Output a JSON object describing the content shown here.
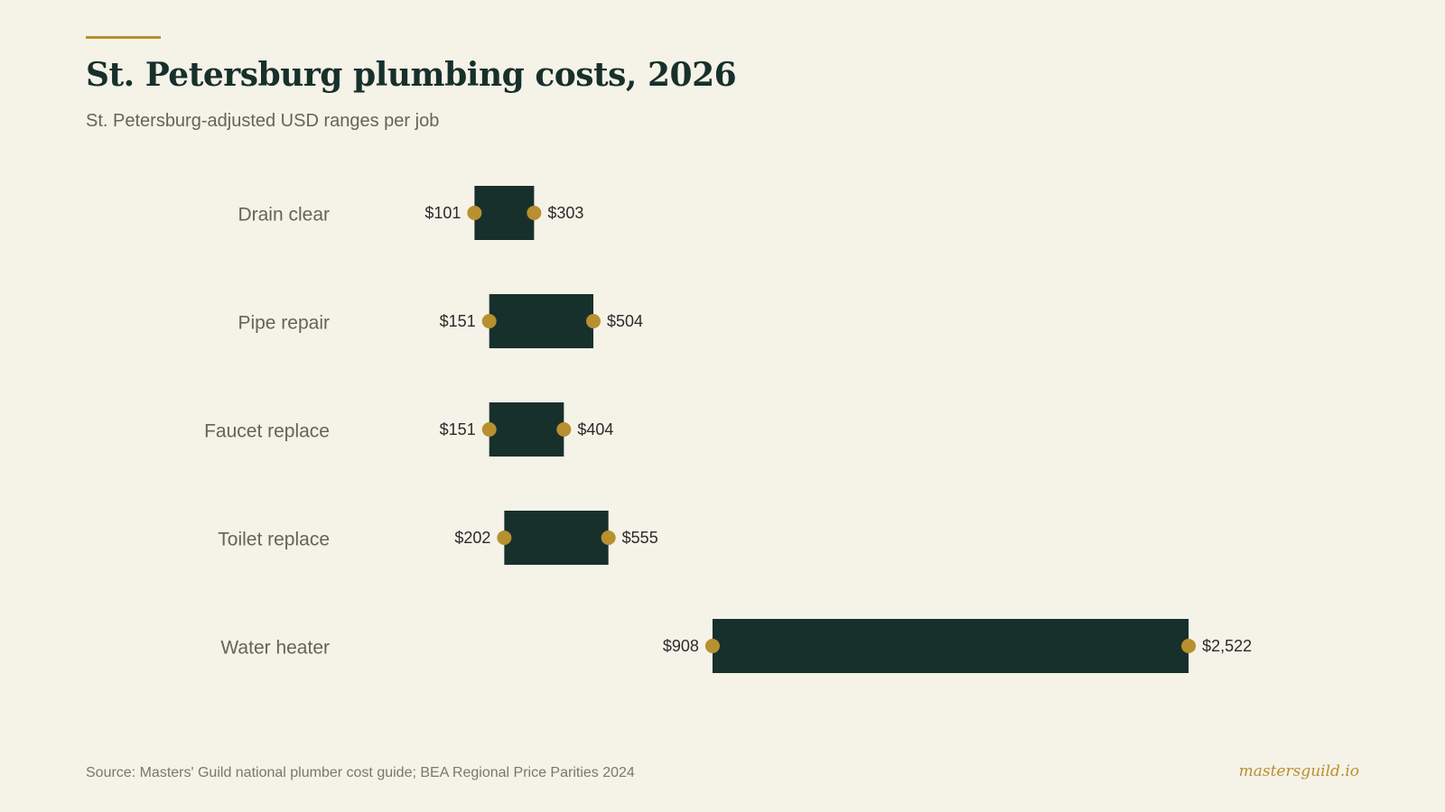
{
  "header": {
    "title": "St. Petersburg plumbing costs, 2026",
    "subtitle": "St. Petersburg-adjusted USD ranges per job"
  },
  "chart_data": {
    "type": "bar",
    "orientation": "horizontal-range",
    "title": "St. Petersburg plumbing costs, 2026",
    "subtitle": "St. Petersburg-adjusted USD ranges per job",
    "xlabel": "",
    "ylabel": "",
    "grid": false,
    "categories": [
      "Drain clear",
      "Pipe repair",
      "Faucet replace",
      "Toilet replace",
      "Water heater"
    ],
    "low": [
      101,
      151,
      151,
      202,
      908
    ],
    "high": [
      303,
      504,
      404,
      555,
      2522
    ],
    "low_labels": [
      "$101",
      "$151",
      "$151",
      "$202",
      "$908"
    ],
    "high_labels": [
      "$303",
      "$504",
      "$404",
      "$555",
      "$2,522"
    ],
    "colors": {
      "bar": "#17302b",
      "endpoint": "#b8902f",
      "accent": "#b8902f"
    }
  },
  "footer": {
    "source": "Source: Masters' Guild national plumber cost guide; BEA Regional Price Parities 2024",
    "brand": "mastersguild.io"
  }
}
